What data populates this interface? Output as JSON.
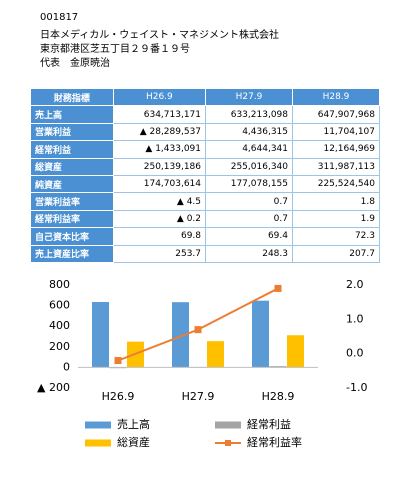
{
  "header": {
    "code": "001817",
    "company": "日本メディカル・ウェイスト・マネジメント株式会社",
    "address": "東京都港区芝五丁目２９番１９号",
    "representative": "代表　金原暁治"
  },
  "table": {
    "columns": [
      "財務指標",
      "H26.9",
      "H27.9",
      "H28.9"
    ],
    "rows": [
      [
        "売上高",
        "634,713,171",
        "633,213,098",
        "647,907,968"
      ],
      [
        "営業利益",
        "▲ 28,289,537",
        "4,436,315",
        "11,704,107"
      ],
      [
        "経常利益",
        "▲ 1,433,091",
        "4,644,341",
        "12,164,969"
      ],
      [
        "総資産",
        "250,139,186",
        "255,016,340",
        "311,987,113"
      ],
      [
        "純資産",
        "174,703,614",
        "177,078,155",
        "225,524,540"
      ],
      [
        "営業利益率",
        "▲ 4.5",
        "0.7",
        "1.8"
      ],
      [
        "経常利益率",
        "▲ 0.2",
        "0.7",
        "1.9"
      ],
      [
        "自己資本比率",
        "69.8",
        "69.4",
        "72.3"
      ],
      [
        "売上資産比率",
        "253.7",
        "248.3",
        "207.7"
      ]
    ]
  },
  "chart_data": {
    "type": "bar-line",
    "categories": [
      "H26.9",
      "H27.9",
      "H28.9"
    ],
    "series": [
      {
        "name": "売上高",
        "color": "#5b9bd5",
        "type": "bar",
        "values": [
          634.7,
          633.2,
          647.9
        ]
      },
      {
        "name": "経常利益",
        "color": "#a5a5a5",
        "type": "bar",
        "values": [
          -1.4,
          4.6,
          12.2
        ]
      },
      {
        "name": "総資産",
        "color": "#ffc000",
        "type": "bar",
        "values": [
          250.1,
          255.0,
          312.0
        ]
      },
      {
        "name": "経常利益率",
        "color": "#ed7d31",
        "type": "line",
        "axis": "y2",
        "values": [
          -0.2,
          0.7,
          1.9
        ]
      }
    ],
    "ylim": [
      -200,
      800
    ],
    "yticks": [
      {
        "value": -200,
        "label": "▲ 200"
      },
      0,
      200,
      400,
      600,
      800
    ],
    "y2lim": [
      -1,
      2
    ],
    "y2ticks": [
      {
        "value": -1,
        "label": "-1.0"
      },
      {
        "value": 0,
        "label": "0.0"
      },
      {
        "value": 1,
        "label": "1.0"
      },
      {
        "value": 2,
        "label": "2.0"
      }
    ],
    "grid": false
  }
}
